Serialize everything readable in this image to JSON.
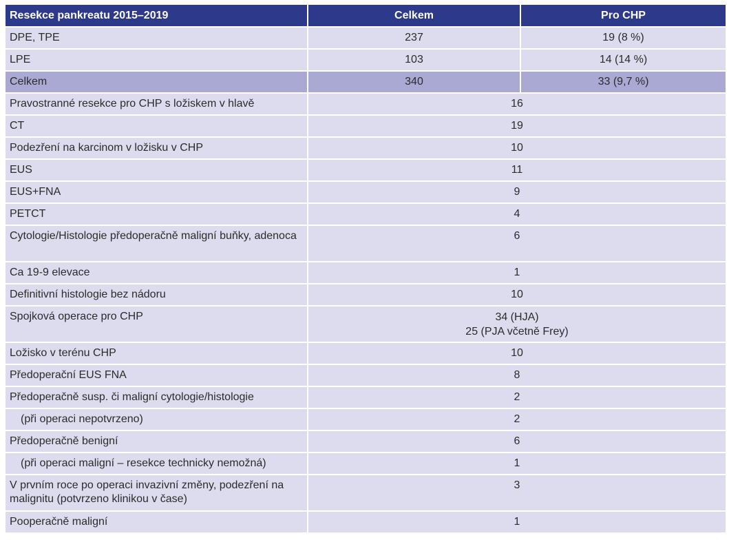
{
  "table": {
    "headers": [
      "Resekce pankreatu 2015–2019",
      "Celkem",
      "Pro CHP"
    ],
    "summary_rows": [
      {
        "label": "DPE, TPE",
        "total": "237",
        "chp": "19 (8 %)"
      },
      {
        "label": "LPE",
        "total": "103",
        "chp": "14 (14 %)"
      },
      {
        "label": "Celkem",
        "total": "340",
        "chp": "33 (9,7 %)"
      }
    ],
    "detail_rows": [
      {
        "label": "Pravostranné resekce pro CHP s ložiskem v hlavě",
        "value": "16"
      },
      {
        "label": "CT",
        "value": "19"
      },
      {
        "label": "Podezření na karcinom v ložisku v CHP",
        "value": "10"
      },
      {
        "label": "EUS",
        "value": "11"
      },
      {
        "label": "EUS+FNA",
        "value": "9"
      },
      {
        "label": "PETCT",
        "value": "4"
      },
      {
        "label": "Cytologie/Histologie předoperačně maligní buňky, adenoca",
        "value": "6"
      },
      {
        "label": "Ca 19-9 elevace",
        "value": "1"
      },
      {
        "label": "Definitivní histologie bez nádoru",
        "value": "10"
      },
      {
        "label": "Spojková operace pro CHP",
        "value": "34 (HJA)",
        "value2": "25 (PJA včetně Frey)"
      },
      {
        "label": "Ložisko v terénu CHP",
        "value": "10"
      },
      {
        "label": "Předoperační EUS FNA",
        "value": "8"
      },
      {
        "label": "Předoperačně susp. či maligní cytologie/histologie",
        "value": "2"
      },
      {
        "label": "(při operaci nepotvrzeno)",
        "value": "2"
      },
      {
        "label": "Předoperačně benigní",
        "value": "6"
      },
      {
        "label": "(při operaci maligní – resekce technicky nemožná)",
        "value": "1"
      },
      {
        "label": "V prvním roce po operaci invazivní změny, podezření na malignitu (potvrzeno klinikou v čase)",
        "value": "3"
      },
      {
        "label": "Pooperačně maligní",
        "value": "1"
      }
    ]
  }
}
